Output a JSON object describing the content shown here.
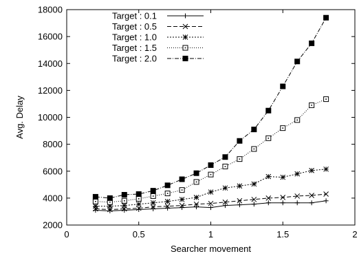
{
  "chart_data": {
    "type": "line",
    "title": "",
    "xlabel": "Searcher movement",
    "ylabel": "Avg. Delay",
    "xlim": [
      0,
      2
    ],
    "ylim": [
      2000,
      18000
    ],
    "x_ticks": [
      "0",
      "0.5",
      "1",
      "1.5",
      "2"
    ],
    "y_ticks": [
      "2000",
      "4000",
      "6000",
      "8000",
      "10000",
      "12000",
      "14000",
      "16000",
      "18000"
    ],
    "grid": false,
    "legend_position": "top-left",
    "x": [
      0.2,
      0.3,
      0.4,
      0.5,
      0.6,
      0.7,
      0.8,
      0.9,
      1.0,
      1.1,
      1.2,
      1.3,
      1.4,
      1.5,
      1.6,
      1.7,
      1.8
    ],
    "series": [
      {
        "name": "Target : 0.1",
        "marker": "plus",
        "dash": "",
        "values": [
          3100,
          3050,
          3100,
          3150,
          3200,
          3250,
          3300,
          3350,
          3300,
          3450,
          3500,
          3550,
          3650,
          3650,
          3650,
          3650,
          3800
        ]
      },
      {
        "name": "Target : 0.5",
        "marker": "cross",
        "dash": "6,3",
        "values": [
          3200,
          3150,
          3200,
          3250,
          3350,
          3400,
          3450,
          3550,
          3600,
          3700,
          3800,
          3900,
          4000,
          4050,
          4150,
          4200,
          4300
        ]
      },
      {
        "name": "Target : 1.0",
        "marker": "asterisk",
        "dash": "2,2",
        "values": [
          3400,
          3400,
          3450,
          3550,
          3650,
          3750,
          3900,
          4050,
          4450,
          4750,
          4900,
          5050,
          5600,
          5550,
          5800,
          6050,
          6150
        ]
      },
      {
        "name": "Target : 1.5",
        "marker": "dotted-square",
        "dash": "1,2",
        "values": [
          3750,
          3700,
          3800,
          3950,
          4150,
          4350,
          4600,
          5200,
          5750,
          6350,
          6900,
          7650,
          8450,
          9200,
          9800,
          10900,
          11350
        ]
      },
      {
        "name": "Target : 2.0",
        "marker": "filled-square",
        "dash": "6,2,1,2",
        "values": [
          4100,
          4000,
          4250,
          4300,
          4550,
          4950,
          5400,
          5850,
          6450,
          7050,
          8250,
          9100,
          10500,
          12300,
          14150,
          15500,
          17400
        ]
      }
    ]
  }
}
